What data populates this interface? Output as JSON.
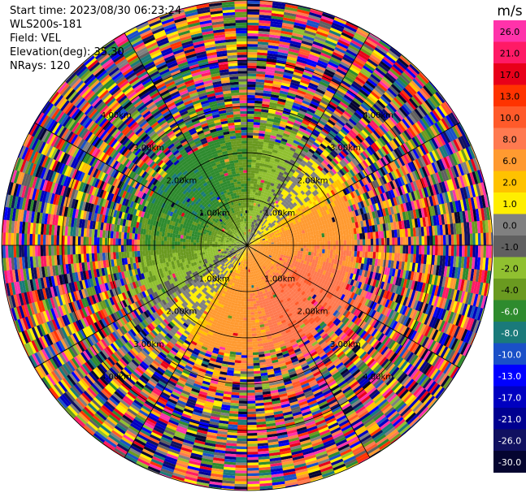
{
  "info": {
    "start_time": "Start time: 2023/08/30 06:23:24",
    "instrument": "WLS200s-181",
    "field": "Field: VEL",
    "elevation": "Elevation(deg): 35.30",
    "nrays": "NRays: 120"
  },
  "chart_data": {
    "type": "heatmap",
    "projection": "polar-ppi",
    "n_rays": 120,
    "range_rings_km": [
      1.0,
      2.0,
      3.0,
      4.0
    ],
    "ring_labels": [
      "1.00km",
      "2.00km",
      "3.00km",
      "4.00km"
    ],
    "max_range_km": 5.3,
    "colorbar": {
      "unit": "m/s",
      "tick_labels": [
        "26.0",
        "21.0",
        "17.0",
        "13.0",
        "10.0",
        "8.0",
        "6.0",
        "2.0",
        "1.0",
        "0.0",
        "-1.0",
        "-2.0",
        "-4.0",
        "-6.0",
        "-8.0",
        "-10.0",
        "-13.0",
        "-17.0",
        "-21.0",
        "-26.0",
        "-30.0"
      ],
      "colors": [
        "#ff33aa",
        "#ff1a66",
        "#e8001a",
        "#ff3300",
        "#ff5a2a",
        "#ff7a50",
        "#ff9a30",
        "#ffc200",
        "#ffee00",
        "#808080",
        "#606060",
        "#90c030",
        "#6a9a20",
        "#2e8b2e",
        "#1a7a7a",
        "#1a50c8",
        "#0000ff",
        "#0000c0",
        "#000090",
        "#101060",
        "#050530"
      ]
    },
    "pattern": {
      "near_range_km": 2.3,
      "near_field": "organized: negative velocities (greens) toward north-west, positive velocities (yellow/orange) toward south-east, grey near zero",
      "far_field": "noise: random colors across full scale"
    }
  }
}
